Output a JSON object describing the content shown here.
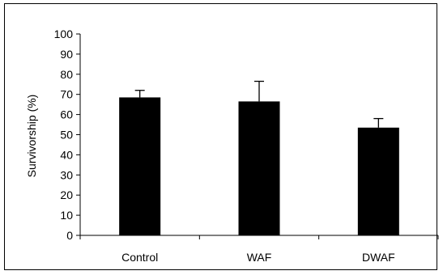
{
  "chart_data": {
    "type": "bar",
    "title": "",
    "xlabel": "",
    "ylabel": "Survivorship (%)",
    "ylim": [
      0,
      100
    ],
    "yticks": [
      0,
      10,
      20,
      30,
      40,
      50,
      60,
      70,
      80,
      90,
      100
    ],
    "categories": [
      "Control",
      "WAF",
      "DWAF"
    ],
    "values": [
      68.5,
      66.5,
      53.5
    ],
    "error_upper": [
      3.5,
      10,
      4.5
    ],
    "grid": false,
    "legend": "none",
    "bar_color": "#000000"
  }
}
